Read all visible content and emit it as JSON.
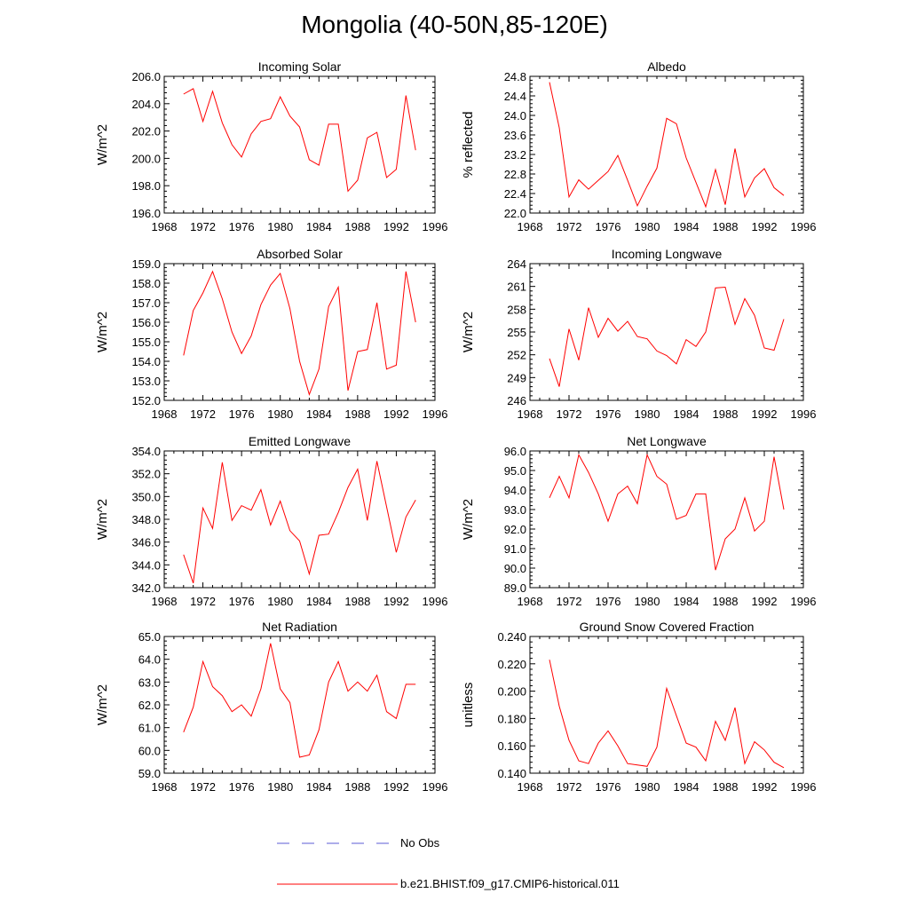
{
  "title": "Mongolia (40-50N,85-120E)",
  "legend": {
    "obs_label": "No Obs",
    "model_label": "b.e21.BHIST.f09_g17.CMIP6-historical.011",
    "obs_color": "#5b5bd6",
    "model_color": "#ff0000"
  },
  "chart_data": [
    {
      "type": "line",
      "title": "Incoming Solar",
      "ylabel": "W/m^2",
      "xlim": [
        1968,
        1996
      ],
      "xticks": [
        1968,
        1972,
        1976,
        1980,
        1984,
        1988,
        1992,
        1996
      ],
      "ylim": [
        196.0,
        206.0
      ],
      "yticks": [
        "196.0",
        "198.0",
        "200.0",
        "202.0",
        "204.0",
        "206.0"
      ],
      "x": [
        1970,
        1971,
        1972,
        1973,
        1974,
        1975,
        1976,
        1977,
        1978,
        1979,
        1980,
        1981,
        1982,
        1983,
        1984,
        1985,
        1986,
        1987,
        1988,
        1989,
        1990,
        1991,
        1992,
        1993,
        1994
      ],
      "y": [
        204.7,
        205.1,
        202.7,
        204.9,
        202.6,
        201.0,
        200.1,
        201.8,
        202.7,
        202.9,
        204.5,
        203.1,
        202.3,
        199.9,
        199.5,
        202.5,
        202.5,
        197.6,
        198.4,
        201.5,
        201.9,
        198.6,
        199.2,
        204.6,
        200.6
      ]
    },
    {
      "type": "line",
      "title": "Albedo",
      "ylabel": "% reflected",
      "xlim": [
        1968,
        1996
      ],
      "xticks": [
        1968,
        1972,
        1976,
        1980,
        1984,
        1988,
        1992,
        1996
      ],
      "ylim": [
        22.0,
        24.8
      ],
      "yticks": [
        "22.0",
        "22.4",
        "22.8",
        "23.2",
        "23.6",
        "24.0",
        "24.4",
        "24.8"
      ],
      "x": [
        1970,
        1971,
        1972,
        1973,
        1974,
        1975,
        1976,
        1977,
        1978,
        1979,
        1980,
        1981,
        1982,
        1983,
        1984,
        1985,
        1986,
        1987,
        1988,
        1989,
        1990,
        1991,
        1992,
        1993,
        1994
      ],
      "y": [
        24.68,
        23.75,
        22.33,
        22.68,
        22.49,
        22.67,
        22.85,
        23.18,
        22.67,
        22.15,
        22.55,
        22.92,
        23.94,
        23.83,
        23.13,
        22.63,
        22.13,
        22.89,
        22.17,
        23.32,
        22.33,
        22.72,
        22.91,
        22.52,
        22.36
      ]
    },
    {
      "type": "line",
      "title": "Absorbed Solar",
      "ylabel": "W/m^2",
      "xlim": [
        1968,
        1996
      ],
      "xticks": [
        1968,
        1972,
        1976,
        1980,
        1984,
        1988,
        1992,
        1996
      ],
      "ylim": [
        152.0,
        159.0
      ],
      "yticks": [
        "152.0",
        "153.0",
        "154.0",
        "155.0",
        "156.0",
        "157.0",
        "158.0",
        "159.0"
      ],
      "x": [
        1970,
        1971,
        1972,
        1973,
        1974,
        1975,
        1976,
        1977,
        1978,
        1979,
        1980,
        1981,
        1982,
        1983,
        1984,
        1985,
        1986,
        1987,
        1988,
        1989,
        1990,
        1991,
        1992,
        1993,
        1994
      ],
      "y": [
        154.3,
        156.6,
        157.5,
        158.6,
        157.2,
        155.5,
        154.4,
        155.3,
        156.9,
        157.9,
        158.5,
        156.7,
        154.0,
        152.3,
        153.6,
        156.8,
        157.8,
        152.5,
        154.5,
        154.6,
        157.0,
        153.6,
        153.8,
        158.6,
        156.0
      ]
    },
    {
      "type": "line",
      "title": "Incoming Longwave",
      "ylabel": "W/m^2",
      "xlim": [
        1968,
        1996
      ],
      "xticks": [
        1968,
        1972,
        1976,
        1980,
        1984,
        1988,
        1992,
        1996
      ],
      "ylim": [
        246,
        264
      ],
      "yticks": [
        "246",
        "249",
        "252",
        "255",
        "258",
        "261",
        "264"
      ],
      "x": [
        1970,
        1971,
        1972,
        1973,
        1974,
        1975,
        1976,
        1977,
        1978,
        1979,
        1980,
        1981,
        1982,
        1983,
        1984,
        1985,
        1986,
        1987,
        1988,
        1989,
        1990,
        1991,
        1992,
        1993,
        1994
      ],
      "y": [
        251.5,
        247.8,
        255.4,
        251.3,
        258.2,
        254.3,
        256.8,
        255.1,
        256.4,
        254.4,
        254.1,
        252.5,
        251.9,
        250.8,
        254.0,
        253.1,
        255.0,
        260.8,
        260.9,
        256.0,
        259.4,
        257.2,
        252.9,
        252.6,
        256.7
      ]
    },
    {
      "type": "line",
      "title": "Emitted Longwave",
      "ylabel": "W/m^2",
      "xlim": [
        1968,
        1996
      ],
      "xticks": [
        1968,
        1972,
        1976,
        1980,
        1984,
        1988,
        1992,
        1996
      ],
      "ylim": [
        342.0,
        354.0
      ],
      "yticks": [
        "342.0",
        "344.0",
        "346.0",
        "348.0",
        "350.0",
        "352.0",
        "354.0"
      ],
      "x": [
        1970,
        1971,
        1972,
        1973,
        1974,
        1975,
        1976,
        1977,
        1978,
        1979,
        1980,
        1981,
        1982,
        1983,
        1984,
        1985,
        1986,
        1987,
        1988,
        1989,
        1990,
        1991,
        1992,
        1993,
        1994
      ],
      "y": [
        344.9,
        342.4,
        349.0,
        347.2,
        353.0,
        347.9,
        349.2,
        348.8,
        350.6,
        347.5,
        349.6,
        347.0,
        346.1,
        343.2,
        346.6,
        346.7,
        348.6,
        350.8,
        352.4,
        347.9,
        353.1,
        349.1,
        345.1,
        348.2,
        349.7
      ]
    },
    {
      "type": "line",
      "title": "Net Longwave",
      "ylabel": "W/m^2",
      "xlim": [
        1968,
        1996
      ],
      "xticks": [
        1968,
        1972,
        1976,
        1980,
        1984,
        1988,
        1992,
        1996
      ],
      "ylim": [
        89.0,
        96.0
      ],
      "yticks": [
        "89.0",
        "90.0",
        "91.0",
        "92.0",
        "93.0",
        "94.0",
        "95.0",
        "96.0"
      ],
      "x": [
        1970,
        1971,
        1972,
        1973,
        1974,
        1975,
        1976,
        1977,
        1978,
        1979,
        1980,
        1981,
        1982,
        1983,
        1984,
        1985,
        1986,
        1987,
        1988,
        1989,
        1990,
        1991,
        1992,
        1993,
        1994
      ],
      "y": [
        93.6,
        94.7,
        93.6,
        95.8,
        94.9,
        93.8,
        92.4,
        93.8,
        94.2,
        93.3,
        95.8,
        94.7,
        94.3,
        92.5,
        92.7,
        93.8,
        93.8,
        89.9,
        91.5,
        92.0,
        93.6,
        91.9,
        92.4,
        95.7,
        93.0
      ]
    },
    {
      "type": "line",
      "title": "Net Radiation",
      "ylabel": "W/m^2",
      "xlim": [
        1968,
        1996
      ],
      "xticks": [
        1968,
        1972,
        1976,
        1980,
        1984,
        1988,
        1992,
        1996
      ],
      "ylim": [
        59.0,
        65.0
      ],
      "yticks": [
        "59.0",
        "60.0",
        "61.0",
        "62.0",
        "63.0",
        "64.0",
        "65.0"
      ],
      "x": [
        1970,
        1971,
        1972,
        1973,
        1974,
        1975,
        1976,
        1977,
        1978,
        1979,
        1980,
        1981,
        1982,
        1983,
        1984,
        1985,
        1986,
        1987,
        1988,
        1989,
        1990,
        1991,
        1992,
        1993,
        1994
      ],
      "y": [
        60.8,
        61.9,
        63.9,
        62.8,
        62.4,
        61.7,
        62.0,
        61.5,
        62.7,
        64.7,
        62.7,
        62.1,
        59.7,
        59.8,
        60.9,
        63.0,
        63.9,
        62.6,
        63.0,
        62.6,
        63.3,
        61.7,
        61.4,
        62.9,
        62.9
      ]
    },
    {
      "type": "line",
      "title": "Ground Snow Covered Fraction",
      "ylabel": "unitless",
      "xlim": [
        1968,
        1996
      ],
      "xticks": [
        1968,
        1972,
        1976,
        1980,
        1984,
        1988,
        1992,
        1996
      ],
      "ylim": [
        0.14,
        0.24
      ],
      "yticks": [
        "0.140",
        "0.160",
        "0.180",
        "0.200",
        "0.220",
        "0.240"
      ],
      "x": [
        1970,
        1971,
        1972,
        1973,
        1974,
        1975,
        1976,
        1977,
        1978,
        1979,
        1980,
        1981,
        1982,
        1983,
        1984,
        1985,
        1986,
        1987,
        1988,
        1989,
        1990,
        1991,
        1992,
        1993,
        1994
      ],
      "y": [
        0.223,
        0.189,
        0.164,
        0.149,
        0.147,
        0.162,
        0.171,
        0.16,
        0.147,
        0.146,
        0.145,
        0.159,
        0.202,
        0.182,
        0.162,
        0.159,
        0.149,
        0.178,
        0.164,
        0.188,
        0.147,
        0.163,
        0.157,
        0.148,
        0.144
      ]
    }
  ]
}
